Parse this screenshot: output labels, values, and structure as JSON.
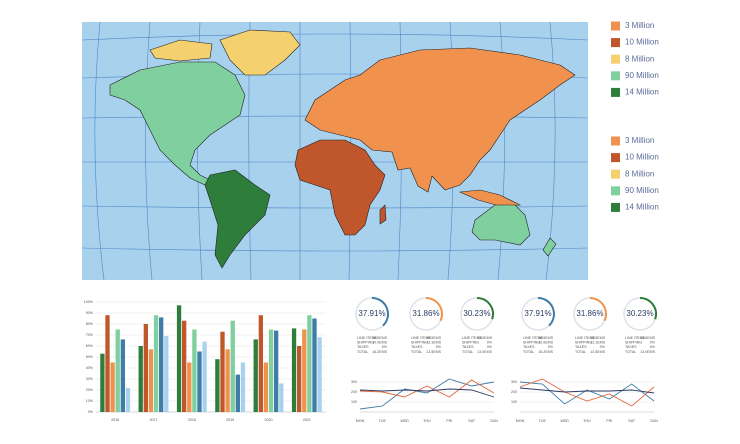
{
  "map_legends": [
    {
      "items": [
        {
          "label": "3 Million",
          "color": "#f0924e"
        },
        {
          "label": "10 Million",
          "color": "#c0562b"
        },
        {
          "label": "8 Million",
          "color": "#f5d06f"
        },
        {
          "label": "90 Million",
          "color": "#7fcf9f"
        },
        {
          "label": "14 Million",
          "color": "#2e7d3a"
        }
      ]
    },
    {
      "items": [
        {
          "label": "3 Million",
          "color": "#f0924e"
        },
        {
          "label": "10 Million",
          "color": "#c0562b"
        },
        {
          "label": "8 Million",
          "color": "#f5d06f"
        },
        {
          "label": "90 Million",
          "color": "#7fcf9f"
        },
        {
          "label": "14 Million",
          "color": "#2e7d3a"
        }
      ]
    }
  ],
  "chart_data": [
    {
      "type": "bar",
      "categories": [
        "2016",
        "2017",
        "2018",
        "2019",
        "2020",
        "2021"
      ],
      "ylim": [
        0,
        100
      ],
      "yticks": [
        {
          "value": 0,
          "label": "0%"
        },
        {
          "value": 10,
          "label": "10%"
        },
        {
          "value": 20,
          "label": "20%"
        },
        {
          "value": 30,
          "label": "30%"
        },
        {
          "value": 40,
          "label": "40%"
        },
        {
          "value": 50,
          "label": "50%"
        },
        {
          "value": 60,
          "label": "60%"
        },
        {
          "value": 70,
          "label": "70%"
        },
        {
          "value": 80,
          "label": "80%"
        },
        {
          "value": 90,
          "label": "90%"
        },
        {
          "value": 100,
          "label": "100%"
        }
      ],
      "grid": true,
      "series": [
        {
          "color": "#2e7d3a",
          "values": [
            53,
            60,
            97,
            48,
            66,
            76
          ]
        },
        {
          "color": "#c0562b",
          "values": [
            88,
            80,
            83,
            73,
            88,
            60
          ]
        },
        {
          "color": "#f0924e",
          "values": [
            45,
            57,
            45,
            57,
            45,
            75
          ]
        },
        {
          "color": "#7fcf9f",
          "values": [
            75,
            88,
            75,
            83,
            75,
            88
          ]
        },
        {
          "color": "#3f7ca8",
          "values": [
            66,
            86,
            55,
            34,
            74,
            85
          ]
        },
        {
          "color": "#a8d1ee",
          "values": [
            22,
            69,
            64,
            45,
            26,
            68
          ]
        }
      ]
    },
    {
      "type": "donut",
      "values": [
        37.91,
        31.86,
        30.23
      ],
      "value_labels": [
        "37.91%",
        "31.86%",
        "30.23%"
      ],
      "colors": [
        "#3f7ca8",
        "#f0924e",
        "#2e7d3a"
      ],
      "details": [
        {
          "labels": [
            "LINE ITEMS",
            "SHIPPING",
            "TAXES",
            "TOTAL"
          ],
          "values": [
            "16.5EMS",
            "10.0EMS",
            "0%",
            "16.2EMS"
          ]
        },
        {
          "labels": [
            "LINE ITEMS",
            "SHIPPING",
            "TAXES",
            "TOTAL"
          ],
          "values": [
            "15.5EMS",
            "13.1EMS",
            "0%",
            "13.5EMS"
          ]
        },
        {
          "labels": [
            "LINE ITEMS",
            "SHIPPING",
            "TAXES",
            "TOTAL"
          ],
          "values": [
            "13.0EMS",
            "0%",
            "0%",
            "13.0EMS"
          ]
        }
      ]
    },
    {
      "type": "line",
      "categories": [
        "MON",
        "TUE",
        "WED",
        "THU",
        "FRI",
        "SAT",
        "SUN"
      ],
      "ylim": [
        0,
        400
      ],
      "yticks": [
        100,
        200,
        300
      ],
      "grid": true,
      "series": [
        {
          "color": "#3f7ca8",
          "values": [
            30,
            60,
            230,
            190,
            330,
            260,
            300
          ]
        },
        {
          "color": "#e0663a",
          "values": [
            210,
            200,
            150,
            260,
            150,
            320,
            190
          ]
        },
        {
          "color": "#2c3a66",
          "values": [
            220,
            210,
            220,
            210,
            230,
            220,
            150
          ]
        }
      ]
    },
    {
      "type": "donut",
      "values": [
        37.91,
        31.86,
        30.23
      ],
      "value_labels": [
        "37.91%",
        "31.86%",
        "30.23%"
      ],
      "colors": [
        "#3f7ca8",
        "#f0924e",
        "#2e7d3a"
      ],
      "details": [
        {
          "labels": [
            "LINE ITEMS",
            "SHIPPING",
            "TAXES",
            "TOTAL"
          ],
          "values": [
            "16.5EMS",
            "10.0EMS",
            "0%",
            "16.2EMS"
          ]
        },
        {
          "labels": [
            "LINE ITEMS",
            "SHIPPING",
            "TAXES",
            "TOTAL"
          ],
          "values": [
            "15.5EMS",
            "13.1EMS",
            "0%",
            "13.5EMS"
          ]
        },
        {
          "labels": [
            "LINE ITEMS",
            "SHIPPING",
            "TAXES",
            "TOTAL"
          ],
          "values": [
            "13.0EMS",
            "0%",
            "0%",
            "13.0EMS"
          ]
        }
      ]
    },
    {
      "type": "line",
      "categories": [
        "MON",
        "TUE",
        "WED",
        "THU",
        "FRI",
        "SAT",
        "SUN"
      ],
      "ylim": [
        0,
        400
      ],
      "yticks": [
        100,
        200,
        300
      ],
      "grid": true,
      "series": [
        {
          "color": "#3f7ca8",
          "values": [
            300,
            280,
            80,
            220,
            130,
            280,
            110
          ]
        },
        {
          "color": "#e0663a",
          "values": [
            250,
            330,
            200,
            110,
            180,
            60,
            250
          ]
        },
        {
          "color": "#2c3a66",
          "values": [
            240,
            220,
            200,
            210,
            210,
            220,
            190
          ]
        }
      ]
    }
  ]
}
